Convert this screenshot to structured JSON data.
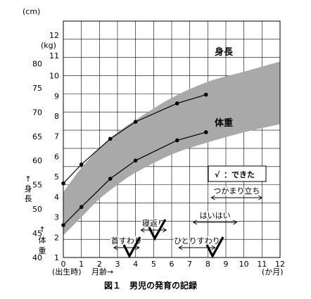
{
  "chart_data": {
    "type": "line",
    "caption": "図１　男児の発育の記録",
    "x_axis": {
      "min": 0,
      "max": 12,
      "ticks": [
        0,
        1,
        2,
        3,
        4,
        5,
        6,
        7,
        8,
        9,
        10,
        11,
        12
      ],
      "birth_label": "(出生時)",
      "age_label": "月齢→",
      "unit": "(か月)"
    },
    "height_axis": {
      "unit": "(cm)",
      "min": 40,
      "max": 80,
      "ticks": [
        40,
        45,
        50,
        55,
        60,
        65,
        70,
        75,
        80
      ],
      "label_chars": [
        "↑",
        "身",
        "長"
      ]
    },
    "weight_axis": {
      "unit": "(kg)",
      "min": 1,
      "max": 12,
      "ticks": [
        1,
        2,
        3,
        4,
        5,
        6,
        7,
        8,
        9,
        10,
        11,
        12
      ],
      "label_chars": [
        "↑",
        "体",
        "重"
      ]
    },
    "series": [
      {
        "name": "身長",
        "axis": "height",
        "x": [
          0,
          1,
          2.6,
          4,
          6.3,
          7.9
        ],
        "y": [
          55.3,
          59.2,
          64.5,
          68.0,
          71.8,
          73.6
        ],
        "band_lower": [
          {
            "x": 0,
            "y": 46.5
          },
          {
            "x": 1,
            "y": 51.5
          },
          {
            "x": 2,
            "y": 56.0
          },
          {
            "x": 3,
            "y": 59.5
          },
          {
            "x": 4,
            "y": 62.5
          },
          {
            "x": 6,
            "y": 66.5
          },
          {
            "x": 8,
            "y": 69.0
          },
          {
            "x": 10,
            "y": 71.3
          },
          {
            "x": 12,
            "y": 73.3
          }
        ],
        "band_upper": [
          {
            "x": 0,
            "y": 53.5
          },
          {
            "x": 1,
            "y": 58.5
          },
          {
            "x": 2,
            "y": 62.5
          },
          {
            "x": 3,
            "y": 65.8
          },
          {
            "x": 4,
            "y": 68.3
          },
          {
            "x": 6,
            "y": 72.5
          },
          {
            "x": 8,
            "y": 75.5
          },
          {
            "x": 10,
            "y": 77.3
          },
          {
            "x": 12,
            "y": 78.8
          }
        ]
      },
      {
        "name": "体重",
        "axis": "weight",
        "x": [
          0,
          1,
          2.6,
          4,
          6.3,
          7.9
        ],
        "y": [
          2.6,
          3.5,
          4.9,
          5.8,
          6.8,
          7.2
        ],
        "band_lower": [
          {
            "x": 0,
            "y": 2.1
          },
          {
            "x": 1,
            "y": 3.0
          },
          {
            "x": 2,
            "y": 3.9
          },
          {
            "x": 3,
            "y": 4.6
          },
          {
            "x": 4,
            "y": 5.2
          },
          {
            "x": 6,
            "y": 6.1
          },
          {
            "x": 8,
            "y": 6.7
          },
          {
            "x": 10,
            "y": 7.2
          },
          {
            "x": 12,
            "y": 7.6
          }
        ],
        "band_upper": [
          {
            "x": 0,
            "y": 3.8
          },
          {
            "x": 1,
            "y": 5.0
          },
          {
            "x": 2,
            "y": 6.2
          },
          {
            "x": 3,
            "y": 7.1
          },
          {
            "x": 4,
            "y": 7.8
          },
          {
            "x": 6,
            "y": 8.9
          },
          {
            "x": 8,
            "y": 9.7
          },
          {
            "x": 10,
            "y": 10.2
          },
          {
            "x": 12,
            "y": 10.7
          }
        ]
      }
    ],
    "legend": {
      "check_mark": "√",
      "text": "：できた"
    },
    "milestones": [
      {
        "name": "首すわり",
        "from": 2.8,
        "to": 4.2,
        "checked_at": 3.7
      },
      {
        "name": "寝返り",
        "from": 4.3,
        "to": 5.7,
        "checked_at": 5.1
      },
      {
        "name": "ひとりすわり",
        "from": 6.4,
        "to": 8.4,
        "checked_at": 8.3
      },
      {
        "name": "はいはい",
        "from": 7.2,
        "to": 9.6,
        "checked_at": null
      },
      {
        "name": "つかまり立ち",
        "from": 8.2,
        "to": 11.0,
        "checked_at": null
      }
    ],
    "grid": true
  }
}
